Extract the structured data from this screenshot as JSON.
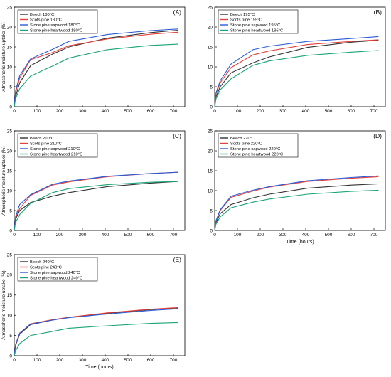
{
  "figure": {
    "ylabel": "Atmospheric moisture uptake (%)",
    "xlabel": "Time (hours)"
  },
  "chart_data": [
    {
      "type": "line",
      "panel_label": "(A)",
      "xlim": [
        0,
        750
      ],
      "ylim": [
        0,
        25
      ],
      "xticks": [
        0,
        100,
        200,
        300,
        400,
        500,
        600,
        700
      ],
      "yticks": [
        0,
        5,
        10,
        15,
        20,
        25
      ],
      "legend_position": "top-left",
      "x": [
        0,
        6,
        24,
        72,
        168,
        240,
        408,
        600,
        720
      ],
      "series": [
        {
          "name": "Beech 180°C",
          "color": "#333333",
          "values": [
            0,
            2.5,
            6.0,
            10.3,
            13.2,
            15.0,
            17.2,
            18.6,
            19.2
          ]
        },
        {
          "name": "Scots pine 180°C",
          "color": "#e8403a",
          "values": [
            0,
            3.5,
            7.2,
            11.8,
            13.6,
            15.3,
            17.0,
            18.2,
            18.7
          ]
        },
        {
          "name": "Stone pine sapwood 180°C",
          "color": "#2a5bd7",
          "values": [
            0,
            4.0,
            7.8,
            12.0,
            14.4,
            16.4,
            18.1,
            19.1,
            19.5
          ]
        },
        {
          "name": "Stone pine heartwood 180°C",
          "color": "#1aa37a",
          "values": [
            0,
            2.0,
            4.5,
            7.7,
            10.2,
            12.2,
            14.3,
            15.4,
            15.7
          ]
        }
      ]
    },
    {
      "type": "line",
      "panel_label": "(B)",
      "xlim": [
        0,
        750
      ],
      "ylim": [
        0,
        25
      ],
      "xticks": [
        0,
        100,
        200,
        300,
        400,
        500,
        600,
        700
      ],
      "yticks": [
        0,
        5,
        10,
        15,
        20,
        25
      ],
      "legend_position": "top-left",
      "x": [
        0,
        6,
        24,
        72,
        168,
        240,
        408,
        600,
        720
      ],
      "series": [
        {
          "name": "Beech 195°C",
          "color": "#333333",
          "values": [
            0,
            2.5,
            5.0,
            8.5,
            11.0,
            12.5,
            14.9,
            16.2,
            16.7
          ]
        },
        {
          "name": "Scots pine 195°C",
          "color": "#e8403a",
          "values": [
            0,
            3.2,
            6.0,
            9.8,
            13.0,
            14.0,
            15.6,
            16.4,
            16.8
          ]
        },
        {
          "name": "Stone pine sapwood 195°C",
          "color": "#2a5bd7",
          "values": [
            0,
            3.5,
            6.5,
            10.7,
            14.3,
            15.2,
            16.4,
            17.1,
            17.6
          ]
        },
        {
          "name": "Stone pine heartwood 195°C",
          "color": "#1aa37a",
          "values": [
            0,
            2.0,
            4.2,
            7.0,
            10.4,
            11.5,
            12.9,
            13.7,
            14.1
          ]
        }
      ]
    },
    {
      "type": "line",
      "panel_label": "(C)",
      "xlim": [
        0,
        750
      ],
      "ylim": [
        0,
        25
      ],
      "xticks": [
        0,
        100,
        200,
        300,
        400,
        500,
        600,
        700
      ],
      "yticks": [
        0,
        5,
        10,
        15,
        20,
        25
      ],
      "legend_position": "top-left",
      "x": [
        0,
        6,
        24,
        72,
        168,
        240,
        408,
        600,
        720
      ],
      "series": [
        {
          "name": "Beech 210°C",
          "color": "#333333",
          "values": [
            0,
            2.8,
            5.0,
            7.0,
            8.6,
            9.5,
            11.0,
            11.9,
            12.3
          ]
        },
        {
          "name": "Scots pine 210°C",
          "color": "#e8403a",
          "values": [
            0,
            3.2,
            5.5,
            8.8,
            11.4,
            12.2,
            13.5,
            14.3,
            14.6
          ]
        },
        {
          "name": "Stone pine sapwood 210°C",
          "color": "#2a5bd7",
          "values": [
            0,
            3.5,
            6.5,
            9.0,
            11.6,
            12.4,
            13.6,
            14.3,
            14.6
          ]
        },
        {
          "name": "Stone pine heartwood 210°C",
          "color": "#1aa37a",
          "values": [
            0,
            2.0,
            4.0,
            6.8,
            9.5,
            10.5,
            11.5,
            12.1,
            12.3
          ]
        }
      ]
    },
    {
      "type": "line",
      "panel_label": "(D)",
      "xlim": [
        0,
        750
      ],
      "ylim": [
        0,
        25
      ],
      "xticks": [
        0,
        100,
        200,
        300,
        400,
        500,
        600,
        700
      ],
      "yticks": [
        0,
        5,
        10,
        15,
        20,
        25
      ],
      "xlabel": "Time (hours)",
      "legend_position": "top-left",
      "x": [
        0,
        6,
        24,
        72,
        168,
        240,
        408,
        600,
        720
      ],
      "series": [
        {
          "name": "Beech 220°C",
          "color": "#333333",
          "values": [
            0,
            2.0,
            4.2,
            6.5,
            8.2,
            9.1,
            10.6,
            11.4,
            11.7
          ]
        },
        {
          "name": "Scots pine 220°C",
          "color": "#e8403a",
          "values": [
            0,
            2.5,
            5.0,
            8.3,
            9.9,
            10.9,
            12.3,
            13.1,
            13.5
          ]
        },
        {
          "name": "Stone pine sapwood 220°C",
          "color": "#2a5bd7",
          "values": [
            0,
            2.5,
            5.2,
            8.6,
            10.1,
            11.0,
            12.5,
            13.3,
            13.7
          ]
        },
        {
          "name": "Stone pine heartwood 220°C",
          "color": "#1aa37a",
          "values": [
            0,
            1.6,
            3.4,
            5.7,
            7.1,
            7.9,
            9.1,
            9.8,
            10.1
          ]
        }
      ]
    },
    {
      "type": "line",
      "panel_label": "(E)",
      "xlim": [
        0,
        750
      ],
      "ylim": [
        0,
        25
      ],
      "xticks": [
        0,
        100,
        200,
        300,
        400,
        500,
        600,
        700
      ],
      "yticks": [
        0,
        5,
        10,
        15,
        20,
        25
      ],
      "xlabel": "Time (hours)",
      "legend_position": "top-left",
      "x": [
        0,
        6,
        24,
        72,
        168,
        240,
        408,
        600,
        720
      ],
      "series": [
        {
          "name": "Beech 240°C",
          "color": "#333333",
          "values": [
            0,
            2.5,
            5.3,
            7.7,
            8.8,
            9.5,
            10.5,
            11.4,
            11.8
          ]
        },
        {
          "name": "Scots pine 240°C",
          "color": "#e8403a",
          "values": [
            0,
            2.7,
            5.5,
            7.9,
            8.9,
            9.5,
            10.6,
            11.5,
            11.9
          ]
        },
        {
          "name": "Stone pine sapwood 240°C",
          "color": "#2a5bd7",
          "values": [
            0,
            2.8,
            5.6,
            7.8,
            8.8,
            9.4,
            10.3,
            11.2,
            11.6
          ]
        },
        {
          "name": "Stone pine heartwood 240°C",
          "color": "#1aa37a",
          "values": [
            0,
            1.2,
            3.0,
            5.0,
            6.0,
            6.8,
            7.4,
            8.0,
            8.2
          ]
        }
      ]
    }
  ]
}
